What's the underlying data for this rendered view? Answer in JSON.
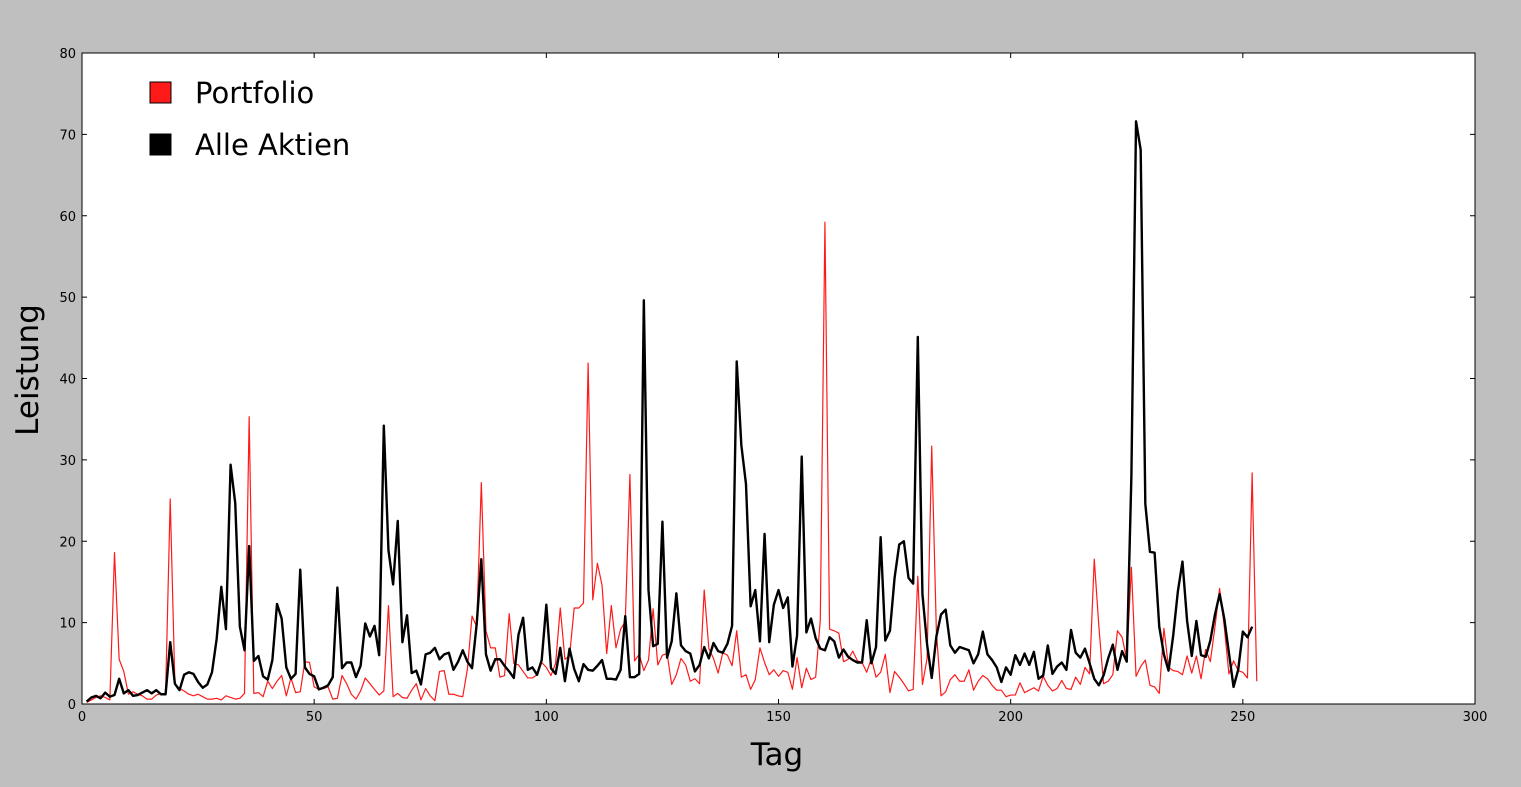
{
  "chart_data": {
    "type": "line",
    "title": "",
    "xlabel": "Tag",
    "ylabel": "Leistung",
    "xlim": [
      0,
      300
    ],
    "ylim": [
      0,
      80
    ],
    "xticks": [
      "0",
      "50",
      "100",
      "150",
      "200",
      "250",
      "300"
    ],
    "yticks": [
      "0",
      "10",
      "20",
      "30",
      "40",
      "50",
      "60",
      "70",
      "80"
    ],
    "grid": false,
    "legend_position": "top-left",
    "colors": {
      "background": "#bfbfbf",
      "plot_background": "#ffffff"
    },
    "series": [
      {
        "name": "Portfolio",
        "color": "#ff1a1a",
        "values": [
          0.2,
          0.5,
          0.8,
          1,
          0.8,
          0.5,
          18.6,
          5.5,
          4,
          1.2,
          1.5,
          1.2,
          1,
          0.6,
          0.6,
          1.1,
          1.3,
          1.2,
          25.2,
          2.5,
          1.9,
          1.6,
          1.2,
          1,
          1.2,
          0.9,
          0.6,
          0.6,
          0.7,
          0.5,
          1,
          0.8,
          0.6,
          0.7,
          1.3,
          35.3,
          1.3,
          1.4,
          0.9,
          2.8,
          1.9,
          2.8,
          3.5,
          1,
          3.2,
          1.4,
          1.5,
          5.2,
          5.1,
          2.1,
          1.8,
          1.9,
          2.1,
          0.6,
          0.7,
          3.5,
          2.5,
          1.2,
          0.6,
          1.6,
          3.2,
          2.5,
          1.8,
          1.1,
          1.6,
          12.1,
          0.9,
          1.3,
          0.8,
          0.7,
          1.7,
          2.5,
          0.5,
          1.9,
          1,
          0.4,
          4,
          4.1,
          1.2,
          1.2,
          1,
          0.9,
          4.3,
          10.8,
          9.5,
          27.2,
          9,
          6.9,
          6.9,
          3.3,
          3.5,
          11.1,
          5,
          4.8,
          4,
          3.2,
          3.2,
          3.6,
          5.1,
          4.5,
          3.5,
          5,
          11.8,
          5.5,
          5.9,
          11.8,
          11.8,
          12.4,
          41.9,
          12.8,
          17.3,
          14.6,
          6.2,
          12.1,
          6.9,
          9.2,
          10.1,
          28.2,
          5.3,
          6.1,
          4.1,
          5.4,
          11.7,
          4.8,
          6,
          6.2,
          2.4,
          3.6,
          5.6,
          4.8,
          2.8,
          3.1,
          2.5,
          14,
          6.8,
          5.6,
          3.8,
          6.3,
          6,
          4.7,
          9,
          3.3,
          3.6,
          1.8,
          3,
          6.9,
          5.1,
          3.6,
          4.2,
          3.4,
          4.1,
          3.9,
          1.8,
          5.7,
          2,
          4.4,
          3,
          3.3,
          10.3,
          59.2,
          9.2,
          9,
          8.7,
          5.2,
          5.5,
          6.5,
          5.3,
          5.1,
          3.9,
          5.6,
          3.3,
          3.9,
          6.1,
          1.4,
          4,
          3.3,
          2.5,
          1.6,
          1.8,
          15.7,
          2.4,
          5.6,
          31.7,
          8.9,
          1,
          1.5,
          3,
          3.6,
          2.8,
          2.8,
          4.2,
          1.7,
          2.8,
          3.5,
          3.1,
          2.3,
          1.7,
          1.7,
          0.9,
          1.1,
          1.1,
          2.6,
          1.4,
          1.7,
          2,
          1.6,
          3.4,
          2.3,
          1.6,
          1.9,
          2.9,
          1.9,
          1.8,
          3.3,
          2.4,
          4.5,
          3.7,
          17.8,
          9.5,
          2.5,
          2.8,
          3.6,
          9,
          8.2,
          5.5,
          16.8,
          3.4,
          4.6,
          5.4,
          2.3,
          2.1,
          1.3,
          9.3,
          4.5,
          4.1,
          4,
          3.6,
          5.9,
          3.8,
          5.9,
          3.1,
          6.7,
          5.2,
          9.5,
          14.2,
          9.5,
          3.7,
          5.3,
          4.1,
          3.9,
          3.2,
          28.4,
          2.8
        ]
      },
      {
        "name": "Alle Aktien",
        "color": "#000000",
        "values": [
          0.3,
          0.8,
          1,
          0.7,
          1.4,
          0.9,
          1.1,
          3.1,
          1.3,
          1.7,
          1,
          1.1,
          1.4,
          1.7,
          1.3,
          1.7,
          1.2,
          1.2,
          7.6,
          2.5,
          1.7,
          3.6,
          3.9,
          3.7,
          2.7,
          2,
          2.4,
          3.9,
          8,
          14.4,
          9.2,
          29.4,
          24.7,
          9.5,
          6.6,
          19.4,
          5.3,
          5.9,
          3.4,
          3,
          5.4,
          12.3,
          10.5,
          4.5,
          3.1,
          3.7,
          16.5,
          4.5,
          3.7,
          3.4,
          1.8,
          2,
          2.3,
          3.3,
          14.3,
          4.4,
          5.1,
          5.1,
          3.3,
          4.7,
          9.9,
          8.3,
          9.6,
          6,
          34.2,
          18.9,
          14.7,
          22.5,
          7.6,
          10.9,
          3.8,
          4.1,
          2.4,
          6.1,
          6.3,
          6.9,
          5.5,
          6.1,
          6.3,
          4.2,
          5.2,
          6.6,
          5.2,
          4.4,
          9.8,
          17.8,
          6.1,
          4.1,
          5.5,
          5.5,
          4.7,
          4,
          3.2,
          8.5,
          10.6,
          4.2,
          4.5,
          3.6,
          5.4,
          12.2,
          4.4,
          3.7,
          6.9,
          2.8,
          6.8,
          4.3,
          2.8,
          4.9,
          4.2,
          4.1,
          4.7,
          5.4,
          3.1,
          3.1,
          3,
          4.2,
          10.8,
          3.3,
          3.3,
          3.7,
          49.6,
          14,
          7.1,
          7.4,
          22.4,
          5.7,
          7.7,
          13.6,
          7.2,
          6.5,
          6.2,
          4,
          4.8,
          7,
          5.6,
          7.5,
          6.5,
          6.3,
          7.4,
          9.6,
          42.1,
          31.8,
          27,
          12,
          14,
          7.7,
          20.9,
          7.6,
          12.2,
          14,
          11.8,
          13.1,
          4.6,
          8.4,
          30.4,
          8.8,
          10.5,
          8.1,
          6.8,
          6.6,
          8.2,
          7.7,
          5.7,
          6.7,
          5.8,
          5.4,
          5.1,
          5.1,
          10.3,
          5,
          7,
          20.5,
          7.8,
          9,
          15.5,
          19.6,
          20,
          15.5,
          14.8,
          45.1,
          13.5,
          7.3,
          3.2,
          8.3,
          11,
          11.6,
          7.2,
          6.3,
          7,
          6.8,
          6.6,
          5,
          6.1,
          8.9,
          6.1,
          5.4,
          4.5,
          2.7,
          4.5,
          3.6,
          6,
          4.8,
          6.2,
          4.8,
          6.4,
          3.1,
          3.5,
          7.2,
          3.7,
          4.6,
          5.1,
          4.2,
          9.1,
          6.3,
          5.7,
          6.8,
          5,
          3.1,
          2.3,
          3.5,
          5.6,
          7.3,
          4.2,
          6.5,
          5.2,
          28,
          71.6,
          68.1,
          24.6,
          18.7,
          18.6,
          9.5,
          6.1,
          4.1,
          8.4,
          13.8,
          17.5,
          10.2,
          5.9,
          10.2,
          6,
          5.8,
          7.8,
          11,
          13.5,
          10.5,
          6.3,
          2.1,
          4.2,
          8.9,
          8.2,
          9.5
        ]
      }
    ]
  }
}
